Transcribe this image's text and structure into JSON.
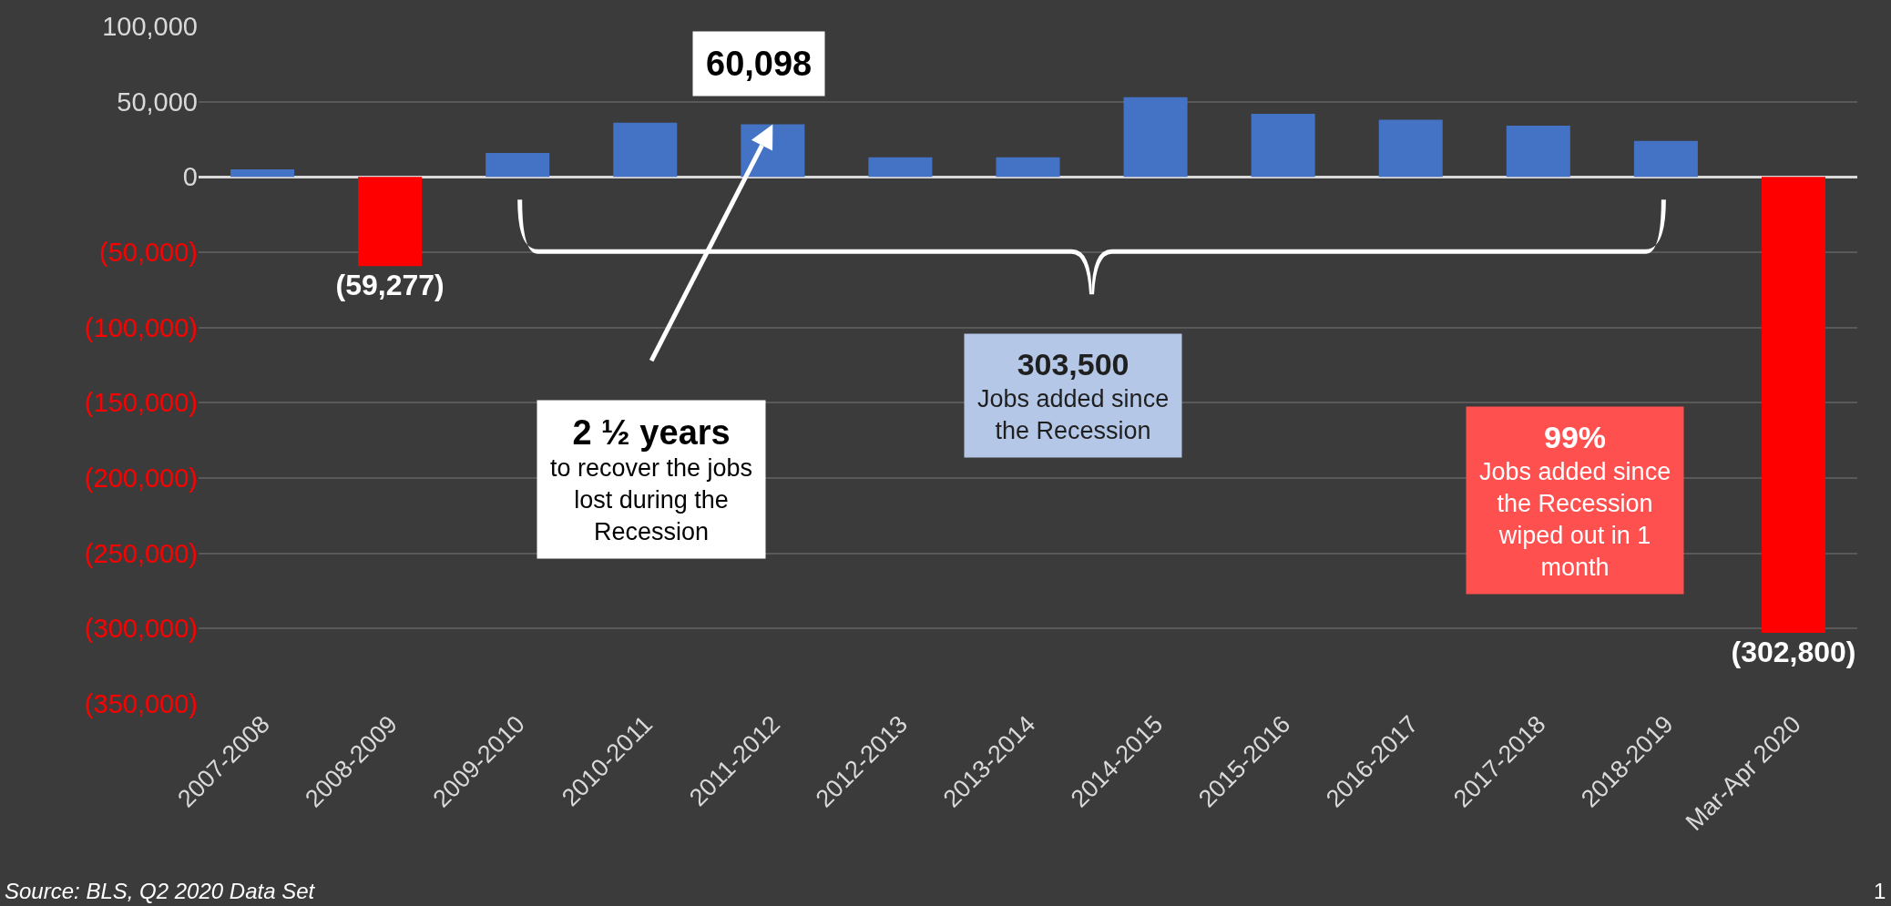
{
  "chart_data": {
    "type": "bar",
    "categories": [
      "2007-2008",
      "2008-2009",
      "2009-2010",
      "2010-2011",
      "2011-2012",
      "2012-2013",
      "2013-2014",
      "2014-2015",
      "2015-2016",
      "2016-2017",
      "2017-2018",
      "2018-2019",
      "Mar-Apr 2020"
    ],
    "values": [
      5000,
      -59277,
      16000,
      36000,
      35000,
      13000,
      13000,
      53000,
      42000,
      38000,
      34000,
      24000,
      -302800
    ],
    "colors": [
      "#4472c4",
      "#ff0000",
      "#4472c4",
      "#4472c4",
      "#4472c4",
      "#4472c4",
      "#4472c4",
      "#4472c4",
      "#4472c4",
      "#4472c4",
      "#4472c4",
      "#4472c4",
      "#ff0000"
    ],
    "value_labels": [
      null,
      "(59,277)",
      null,
      null,
      null,
      null,
      null,
      null,
      null,
      null,
      null,
      null,
      "(302,800)"
    ],
    "ylim": [
      -350000,
      100000
    ],
    "yticks": [
      {
        "value": 100000,
        "label": "100,000"
      },
      {
        "value": 50000,
        "label": "50,000"
      },
      0,
      {
        "value": -50000,
        "label": "(50,000)"
      },
      {
        "value": -100000,
        "label": "(100,000)"
      },
      {
        "value": -150000,
        "label": "(150,000)"
      },
      {
        "value": -200000,
        "label": "(200,000)"
      },
      {
        "value": -250000,
        "label": "(250,000)"
      },
      {
        "value": -300000,
        "label": "(300,000)"
      },
      {
        "value": -350000,
        "label": "(350,000)"
      }
    ],
    "grid": "y",
    "annotations": [
      "60,098",
      "2 ½ years\nto recover the jobs\nlost during the\nRecession",
      "303,500\nJobs added since\nthe Recession",
      "99%\nJobs added since\nthe Recession\nwiped out in 1\nmonth",
      "Source: BLS, Q2 2020 Data Set",
      "1"
    ]
  }
}
